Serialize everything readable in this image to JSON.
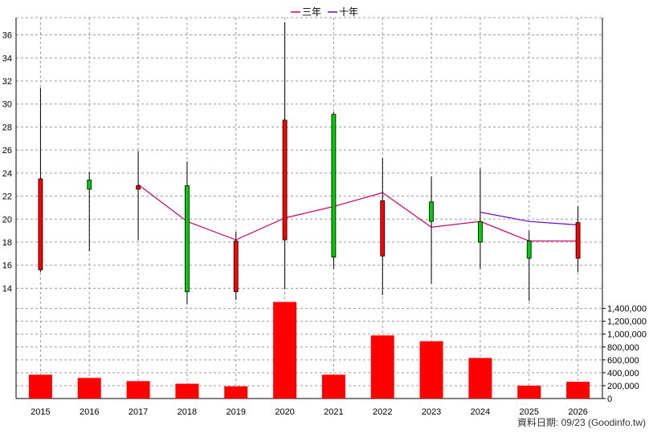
{
  "chart_data": {
    "type": "candlestick",
    "legend": {
      "placement": "top-center",
      "items": [
        {
          "label": "三年",
          "color": "#cc0066"
        },
        {
          "label": "十年",
          "color": "#6600cc"
        }
      ]
    },
    "x": [
      "2015",
      "2016",
      "2017",
      "2018",
      "2019",
      "2020",
      "2021",
      "2022",
      "2023",
      "2024",
      "2025",
      "2026"
    ],
    "price": {
      "ylim": [
        12.5,
        37.5
      ],
      "ticks": [
        "14",
        "16",
        "18",
        "20",
        "22",
        "24",
        "26",
        "28",
        "30",
        "32",
        "34",
        "36"
      ],
      "grid": true,
      "candles": [
        {
          "open": 15.6,
          "high": 31.4,
          "low": 15.4,
          "close": 23.5
        },
        {
          "open": 23.4,
          "high": 24.1,
          "low": 17.2,
          "close": 22.6
        },
        {
          "open": 22.6,
          "high": 25.9,
          "low": 18.2,
          "close": 22.9
        },
        {
          "open": 22.9,
          "high": 25.0,
          "low": 12.6,
          "close": 13.7
        },
        {
          "open": 13.7,
          "high": 18.9,
          "low": 13.0,
          "close": 18.1
        },
        {
          "open": 18.2,
          "high": 37.1,
          "low": 13.9,
          "close": 28.6
        },
        {
          "open": 29.1,
          "high": 29.3,
          "low": 15.7,
          "close": 16.7
        },
        {
          "open": 16.8,
          "high": 25.3,
          "low": 13.4,
          "close": 21.6
        },
        {
          "open": 21.5,
          "high": 23.7,
          "low": 14.4,
          "close": 19.8
        },
        {
          "open": 19.8,
          "high": 24.4,
          "low": 15.7,
          "close": 18.0
        },
        {
          "open": 18.1,
          "high": 19.0,
          "low": 12.9,
          "close": 16.6
        },
        {
          "open": 16.6,
          "high": 21.1,
          "low": 15.4,
          "close": 19.7
        }
      ],
      "lines": [
        {
          "name": "三年",
          "color": "#cc0066",
          "values": [
            null,
            null,
            23.0,
            19.8,
            18.2,
            20.1,
            21.1,
            22.3,
            19.3,
            19.8,
            18.1,
            18.1
          ]
        },
        {
          "name": "十年",
          "color": "#6600cc",
          "values": [
            null,
            null,
            null,
            null,
            null,
            null,
            null,
            null,
            null,
            20.6,
            19.8,
            19.5
          ]
        }
      ]
    },
    "volume": {
      "ylim": [
        0,
        1500000
      ],
      "ticks": [
        "0",
        "200,000",
        "400,000",
        "600,000",
        "800,000",
        "1,000,000",
        "1,200,000",
        "1,400,000"
      ],
      "color": "#ff0000",
      "values": [
        370000,
        320000,
        270000,
        230000,
        190000,
        1500000,
        370000,
        980000,
        890000,
        630000,
        200000,
        260000
      ]
    },
    "footer": "資料日期: 09/23  (Goodinfo.tw)"
  }
}
